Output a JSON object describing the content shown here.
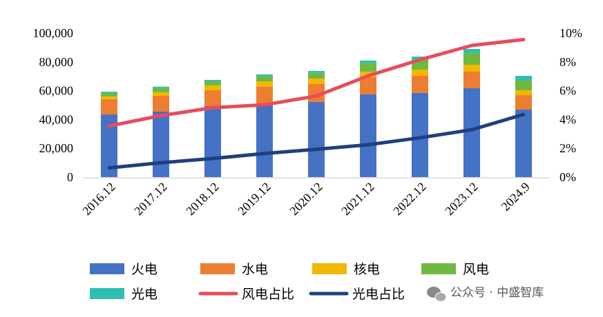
{
  "chart_data": {
    "type": "bar",
    "stacked": true,
    "categories": [
      "2016.12",
      "2017.12",
      "2018.12",
      "2019.12",
      "2020.12",
      "2021.12",
      "2022.12",
      "2023.12",
      "2024.9"
    ],
    "series": [
      {
        "name": "火电",
        "kind": "bar",
        "axis": "left",
        "color": "#4472C4",
        "values": [
          43500,
          45500,
          49300,
          51200,
          52200,
          57400,
          58400,
          61700,
          46900
        ]
      },
      {
        "name": "水电",
        "kind": "bar",
        "axis": "left",
        "color": "#ED7D31",
        "values": [
          10600,
          11000,
          11000,
          11500,
          12400,
          12100,
          11900,
          11500,
          10000
        ]
      },
      {
        "name": "核电",
        "kind": "bar",
        "axis": "left",
        "color": "#F2B800",
        "values": [
          1900,
          2400,
          3300,
          3800,
          3800,
          3700,
          4300,
          4800,
          3400
        ]
      },
      {
        "name": "风电",
        "kind": "bar",
        "axis": "left",
        "color": "#70B940",
        "values": [
          2400,
          3000,
          2900,
          3400,
          4000,
          5900,
          6900,
          8100,
          6700
        ]
      },
      {
        "name": "光电",
        "kind": "bar",
        "axis": "left",
        "color": "#2EBFB2",
        "values": [
          900,
          900,
          1000,
          1400,
          1300,
          1800,
          2200,
          2900,
          3300
        ]
      },
      {
        "name": "风电占比",
        "kind": "line",
        "axis": "right",
        "color": "#E64C5E",
        "values": [
          3.55,
          4.27,
          4.82,
          5.02,
          5.63,
          7.03,
          8.15,
          9.14,
          9.55
        ]
      },
      {
        "name": "光电占比",
        "kind": "line",
        "axis": "right",
        "color": "#203F7D",
        "values": [
          0.64,
          1.0,
          1.29,
          1.64,
          1.93,
          2.25,
          2.73,
          3.29,
          4.35
        ]
      }
    ],
    "ylim": [
      0,
      100000
    ],
    "yticks": [
      "0",
      "20,000",
      "40,000",
      "60,000",
      "80,000",
      "100,000"
    ],
    "y2lim": [
      0,
      10
    ],
    "y2ticks": [
      "0%",
      "2%",
      "4%",
      "6%",
      "8%",
      "10%"
    ],
    "grid": false,
    "legend": "bottom"
  },
  "watermark": "公众号 · 中盛智库"
}
